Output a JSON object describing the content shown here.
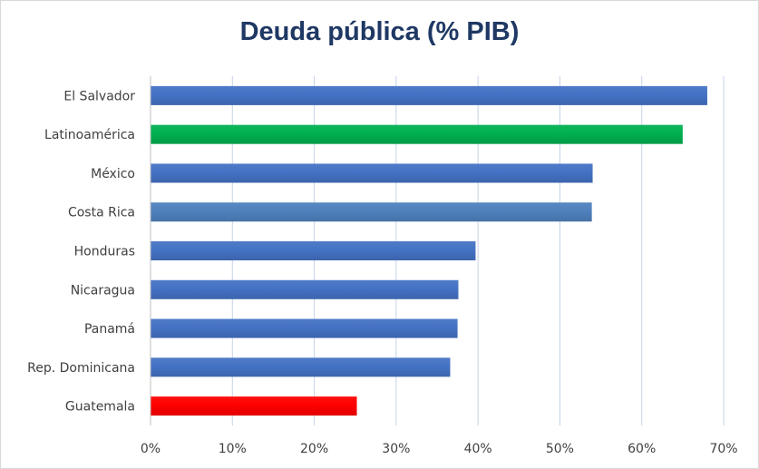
{
  "chart_data": {
    "type": "bar",
    "orientation": "horizontal",
    "title": "Deuda pública (% PIB)",
    "xlabel": "",
    "ylabel": "",
    "categories": [
      "El Salvador",
      "Latinoamérica",
      "México",
      "Costa Rica",
      "Honduras",
      "Nicaragua",
      "Panamá",
      "Rep. Dominicana",
      "Guatemala"
    ],
    "values": [
      68.0,
      65.0,
      54.0,
      53.9,
      39.7,
      37.6,
      37.5,
      36.6,
      25.2
    ],
    "bar_colors": [
      "#4472c4",
      "#00b050",
      "#4472c4",
      "#4f81bd",
      "#4472c4",
      "#4472c4",
      "#4472c4",
      "#4472c4",
      "#ff0000"
    ],
    "xlim": [
      0,
      70
    ],
    "xticks": [
      0,
      10,
      20,
      30,
      40,
      50,
      60,
      70
    ],
    "xtick_labels": [
      "0%",
      "10%",
      "20%",
      "30%",
      "40%",
      "50%",
      "60%",
      "70%"
    ],
    "grid": "vertical",
    "legend": "none"
  }
}
